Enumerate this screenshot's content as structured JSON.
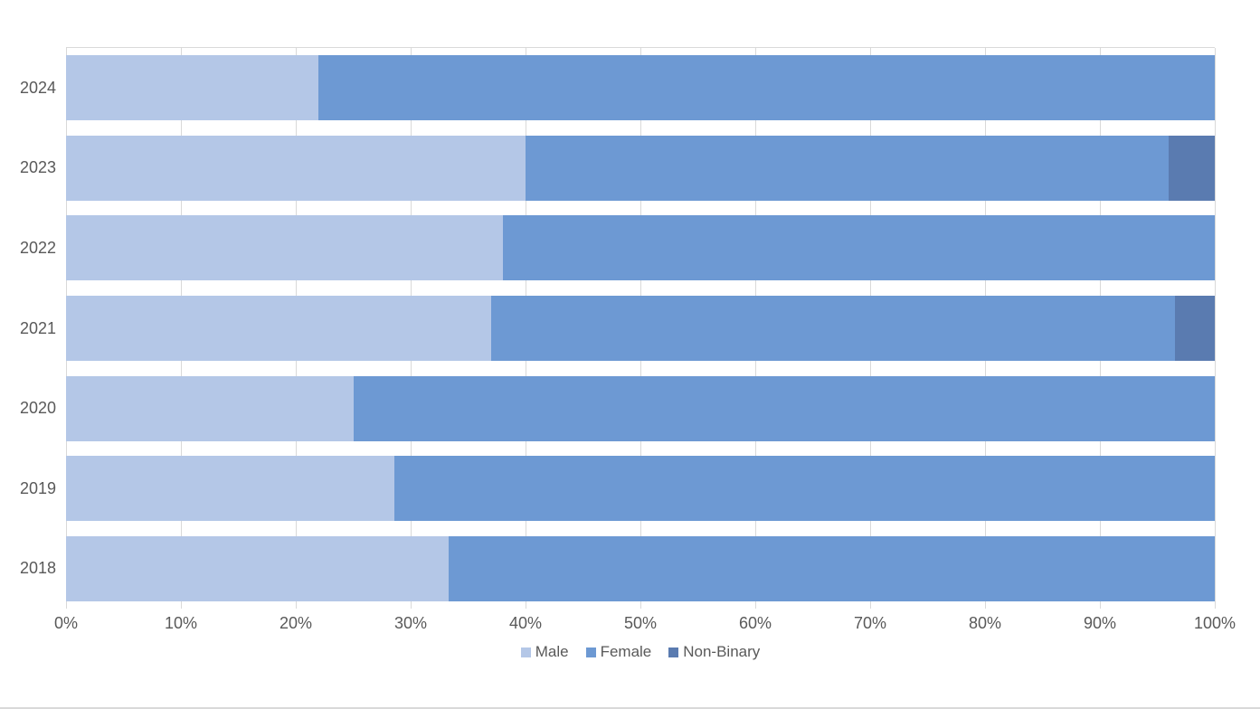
{
  "chart_data": {
    "type": "bar",
    "orientation": "horizontal",
    "stacked": true,
    "stacked_total": 100,
    "title": "",
    "xlabel": "",
    "ylabel": "",
    "categories": [
      "2024",
      "2023",
      "2022",
      "2021",
      "2020",
      "2019",
      "2018"
    ],
    "series": [
      {
        "name": "Male",
        "color": "#B4C7E7",
        "values": [
          22,
          40,
          38,
          37,
          25,
          28.6,
          33.3
        ]
      },
      {
        "name": "Female",
        "color": "#6D99D3",
        "values": [
          78,
          56,
          62,
          59.5,
          75,
          71.4,
          66.7
        ]
      },
      {
        "name": "Non-Binary",
        "color": "#5A7BB0",
        "values": [
          0,
          4,
          0,
          3.5,
          0,
          0,
          0
        ]
      }
    ],
    "x_axis": {
      "min": 0,
      "max": 100,
      "tick_step": 10,
      "tick_labels": [
        "0%",
        "10%",
        "20%",
        "30%",
        "40%",
        "50%",
        "60%",
        "70%",
        "80%",
        "90%",
        "100%"
      ]
    },
    "legend": {
      "position": "bottom",
      "entries": [
        "Male",
        "Female",
        "Non-Binary"
      ]
    },
    "grid": {
      "vertical": true,
      "horizontal": false,
      "color": "#D9D9D9"
    }
  },
  "styles": {
    "background": "#FFFFFF",
    "axis_text_color": "#595959",
    "gridline_color": "#D9D9D9",
    "bottom_edge_color": "#D9D9D9"
  }
}
